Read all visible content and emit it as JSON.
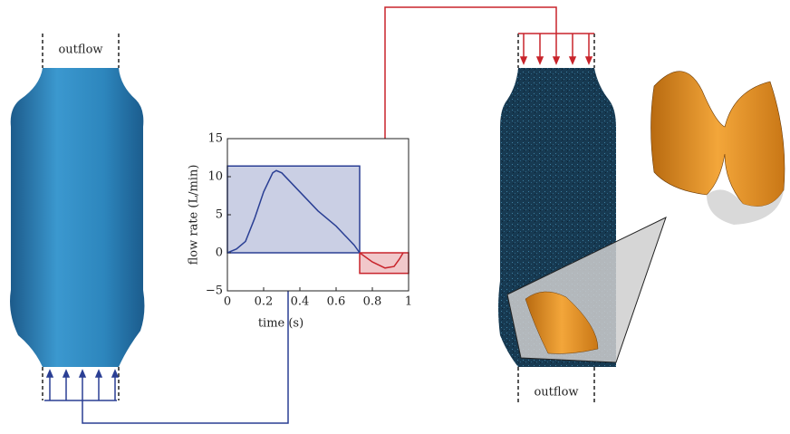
{
  "figure": {
    "labels": [
      "outflow",
      "outflow"
    ]
  },
  "chart_data": {
    "type": "line",
    "xlabel": "time (s)",
    "ylabel": "flow rate (L/min)",
    "xlim": [
      0,
      1
    ],
    "ylim": [
      -5,
      15
    ],
    "xticks": [
      0,
      0.2,
      0.4,
      0.6,
      0.8,
      1
    ],
    "yticks": [
      {
        "value": -5,
        "label": "−5"
      },
      0,
      5,
      10,
      15
    ],
    "x": [
      0,
      0.05,
      0.1,
      0.15,
      0.2,
      0.25,
      0.27,
      0.3,
      0.4,
      0.5,
      0.6,
      0.7,
      0.73,
      0.8,
      0.87,
      0.92,
      0.95,
      0.97
    ],
    "series": [
      {
        "color": "#2a3f94",
        "values": [
          0,
          0.5,
          1.5,
          4.5,
          8,
          10.5,
          10.8,
          10.5,
          8,
          5.5,
          3.5,
          1,
          0,
          null,
          null,
          null,
          null,
          null
        ]
      },
      {
        "color": "#c8242b",
        "values": [
          null,
          null,
          null,
          null,
          null,
          null,
          null,
          null,
          null,
          null,
          null,
          null,
          0,
          -1.2,
          -2,
          -1.8,
          -0.8,
          0
        ]
      }
    ],
    "regions": [
      {
        "x": [
          0,
          0.73
        ],
        "y": [
          0,
          11.4
        ],
        "color": "#2a3f94"
      },
      {
        "x": [
          0.73,
          1
        ],
        "y": [
          -2.7,
          0
        ],
        "color": "#c8242b"
      }
    ]
  }
}
